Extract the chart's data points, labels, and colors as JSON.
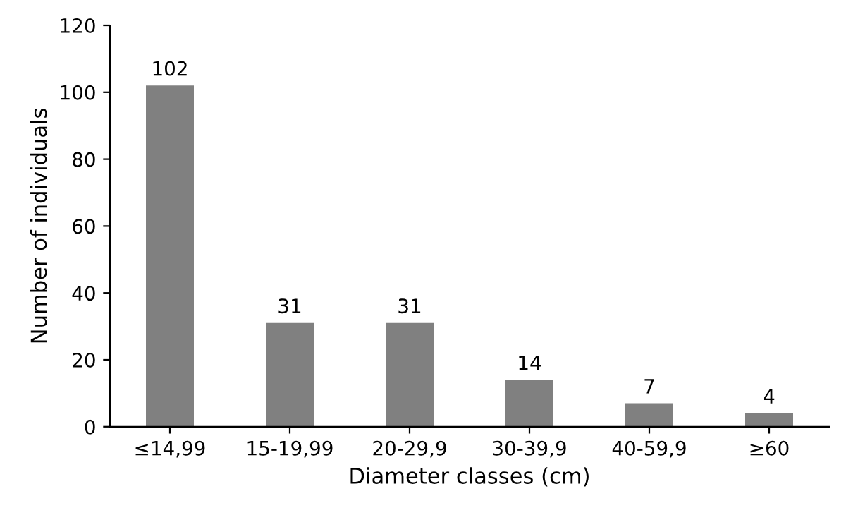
{
  "chart_data": {
    "type": "bar",
    "xlabel": "Diameter classes (cm)",
    "ylabel": "Number of individuals",
    "categories": [
      "≤14,99",
      "15-19,99",
      "20-29,9",
      "30-39,9",
      "40-59,9",
      "≥60"
    ],
    "values": [
      102,
      31,
      31,
      14,
      7,
      4
    ],
    "color": "#808080",
    "ylim": [
      0,
      120
    ],
    "yticks": [
      0,
      20,
      40,
      60,
      80,
      100,
      120
    ],
    "data_labels": true,
    "grid": false,
    "legend": false
  }
}
